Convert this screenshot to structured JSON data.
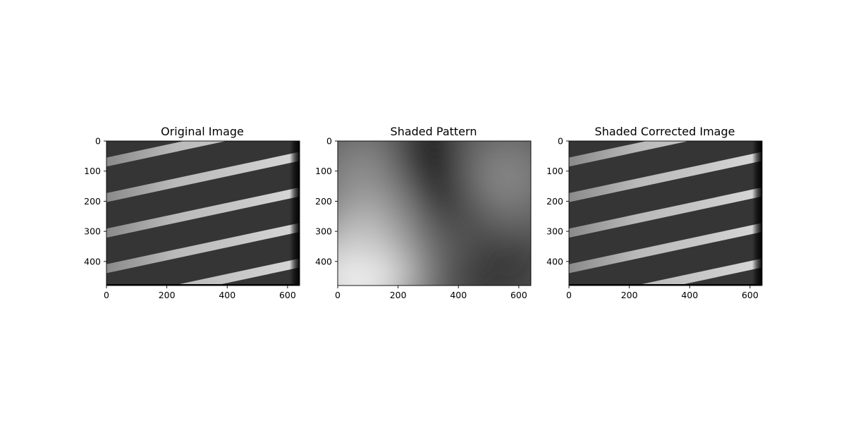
{
  "figure": {
    "panels": [
      {
        "id": "original",
        "title": "Original Image",
        "image_type": "striped",
        "xticks": [
          "0",
          "200",
          "400",
          "600"
        ],
        "yticks": [
          "0",
          "100",
          "200",
          "300",
          "400"
        ],
        "xlim": [
          0,
          640
        ],
        "ylim": [
          0,
          480
        ]
      },
      {
        "id": "shaded",
        "title": "Shaded Pattern",
        "image_type": "shading",
        "xticks": [
          "0",
          "200",
          "400",
          "600"
        ],
        "yticks": [
          "0",
          "100",
          "200",
          "300",
          "400"
        ],
        "xlim": [
          0,
          640
        ],
        "ylim": [
          0,
          480
        ]
      },
      {
        "id": "corrected",
        "title": "Shaded Corrected Image",
        "image_type": "striped",
        "xticks": [
          "0",
          "200",
          "400",
          "600"
        ],
        "yticks": [
          "0",
          "100",
          "200",
          "300",
          "400"
        ],
        "xlim": [
          0,
          640
        ],
        "ylim": [
          0,
          480
        ]
      }
    ]
  }
}
